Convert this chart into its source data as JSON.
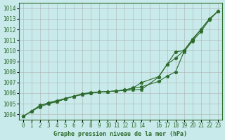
{
  "title": "Graphe pression niveau de la mer (hPa)",
  "bg_color": "#c8eaea",
  "grid_color": "#aaaaaa",
  "line_color": "#2d6b2d",
  "xlim": [
    -0.5,
    23.5
  ],
  "ylim": [
    1003.5,
    1014.5
  ],
  "yticks": [
    1004,
    1005,
    1006,
    1007,
    1008,
    1009,
    1010,
    1011,
    1012,
    1013,
    1014
  ],
  "xticks": [
    0,
    1,
    2,
    3,
    4,
    5,
    6,
    7,
    8,
    9,
    10,
    11,
    12,
    13,
    14,
    15,
    16,
    17,
    18,
    19,
    20,
    21,
    22,
    23
  ],
  "xtick_labels": [
    "0",
    "1",
    "2",
    "3",
    "4",
    "5",
    "6",
    "7",
    "8",
    "9",
    "10",
    "11",
    "12",
    "13",
    "14",
    "",
    "16",
    "17",
    "18",
    "19",
    "20",
    "21",
    "22",
    "23"
  ],
  "line1_x": [
    0,
    1,
    2,
    3,
    4,
    5,
    6,
    7,
    8,
    9,
    10,
    11,
    12,
    13,
    14,
    16,
    17,
    18,
    19,
    20,
    21,
    22,
    23
  ],
  "line1_y": [
    1003.8,
    1004.3,
    1004.8,
    1005.1,
    1005.3,
    1005.5,
    1005.7,
    1005.9,
    1006.0,
    1006.1,
    1006.15,
    1006.2,
    1006.25,
    1006.3,
    1006.35,
    1007.5,
    1008.7,
    1009.9,
    1010.0,
    1011.1,
    1012.0,
    1013.0,
    1013.7
  ],
  "line2_x": [
    0,
    1,
    2,
    3,
    4,
    5,
    6,
    7,
    8,
    9,
    10,
    11,
    12,
    13,
    14,
    16,
    17,
    18,
    19,
    20,
    21,
    22,
    23
  ],
  "line2_y": [
    1003.8,
    1004.3,
    1004.7,
    1005.0,
    1005.2,
    1005.5,
    1005.7,
    1005.95,
    1006.05,
    1006.1,
    1006.15,
    1006.2,
    1006.3,
    1006.45,
    1006.6,
    1007.1,
    1007.6,
    1008.0,
    1009.9,
    1010.9,
    1011.8,
    1012.9,
    1013.7
  ],
  "line3_x": [
    0,
    1,
    2,
    3,
    4,
    5,
    6,
    7,
    8,
    9,
    10,
    11,
    12,
    13,
    14,
    16,
    17,
    18,
    19,
    20,
    21,
    22,
    23
  ],
  "line3_y": [
    1003.8,
    1004.3,
    1004.85,
    1005.05,
    1005.2,
    1005.45,
    1005.7,
    1005.85,
    1006.0,
    1006.1,
    1006.15,
    1006.2,
    1006.3,
    1006.5,
    1007.0,
    1007.55,
    1008.7,
    1009.3,
    1010.0,
    1011.0,
    1012.0,
    1013.0,
    1013.7
  ]
}
